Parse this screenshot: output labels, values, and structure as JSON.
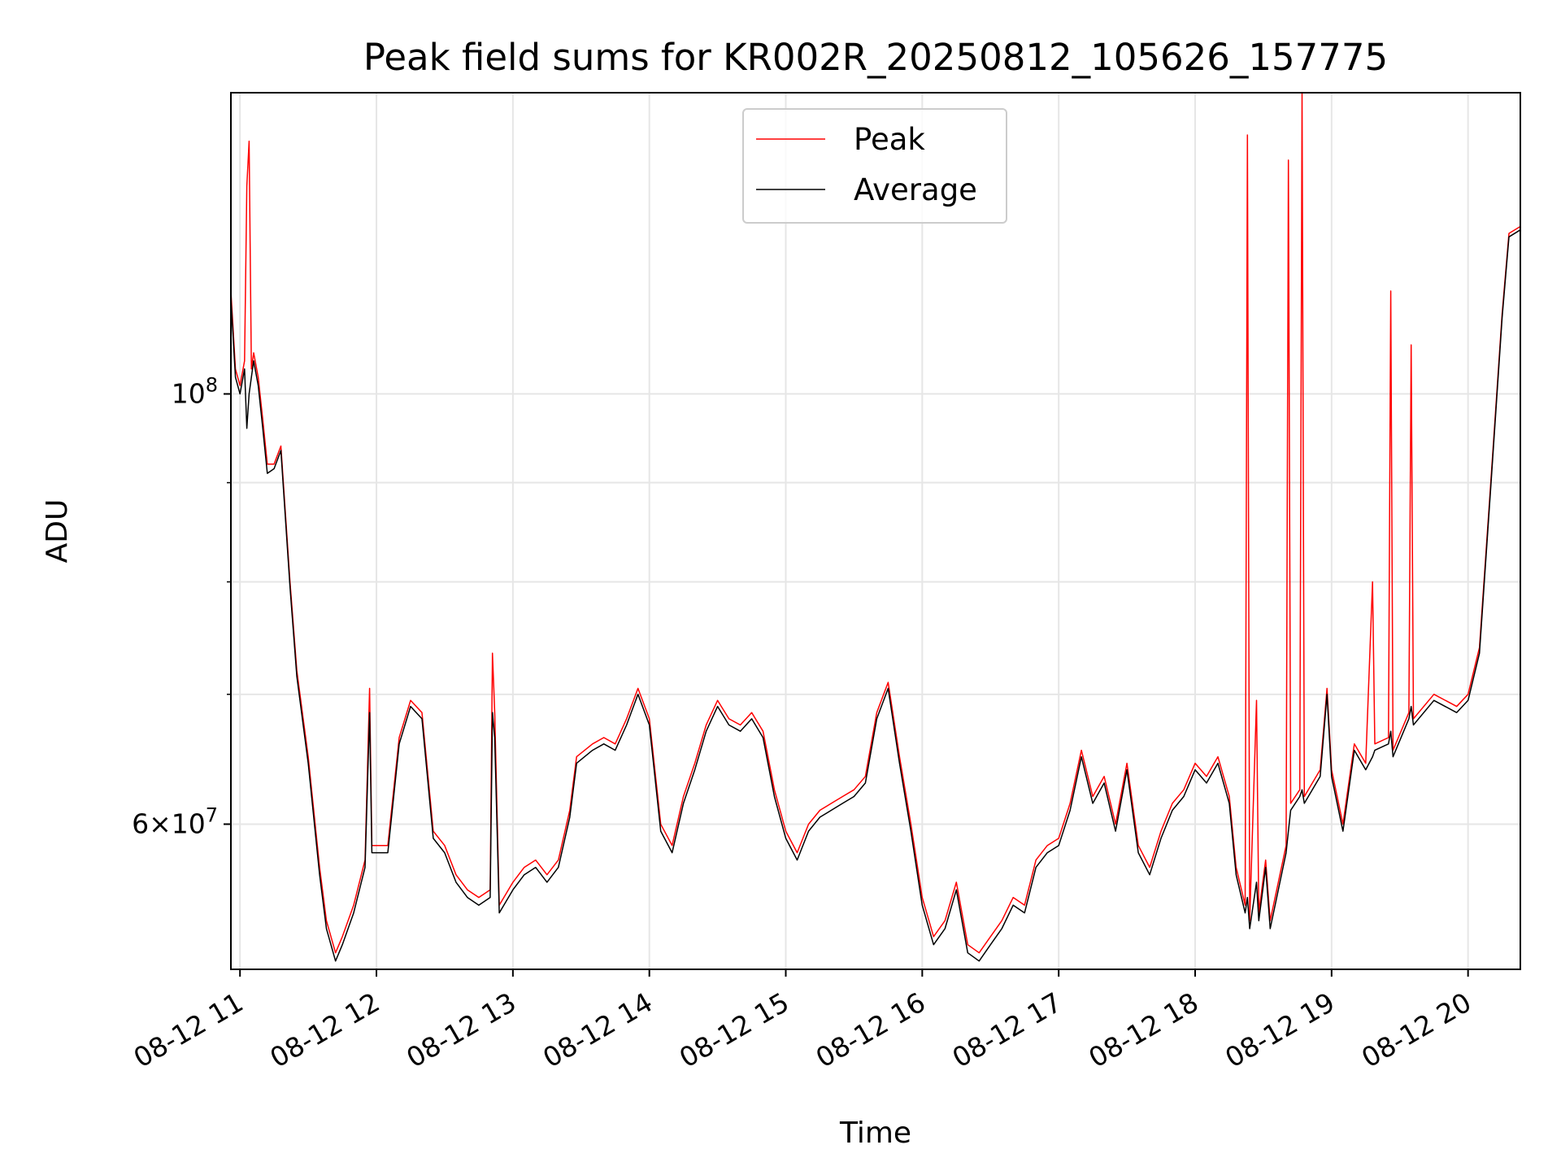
{
  "chart_data": {
    "type": "line",
    "title": "Peak field sums for KR002R_20250812_105626_157775",
    "xlabel": "Time",
    "ylabel": "ADU",
    "x_scale": "time",
    "y_scale": "log",
    "xlim": [
      "2025-08-12 10:56",
      "2025-08-12 20:23"
    ],
    "ylim": [
      50500000,
      143000000
    ],
    "xticks": [
      "08-12 11",
      "08-12 12",
      "08-12 13",
      "08-12 14",
      "08-12 15",
      "08-12 16",
      "08-12 17",
      "08-12 18",
      "08-12 19",
      "08-12 20"
    ],
    "yticks": [
      {
        "value": 100000000,
        "label": "10^8"
      },
      {
        "value": 60000000,
        "label": "6×10^7"
      }
    ],
    "y_minor_ticks": [
      70000000,
      80000000,
      90000000
    ],
    "grid": true,
    "legend": "upper center",
    "series": [
      {
        "name": "Peak",
        "color": "#ff0000",
        "points": [
          [
            "10:56",
            113000000
          ],
          [
            "10:58",
            103000000
          ],
          [
            "11:00",
            101000000
          ],
          [
            "11:02",
            104000000
          ],
          [
            "11:03",
            128000000
          ],
          [
            "11:04",
            135000000
          ],
          [
            "11:05",
            103000000
          ],
          [
            "11:06",
            105000000
          ],
          [
            "11:08",
            102000000
          ],
          [
            "11:10",
            97000000
          ],
          [
            "11:12",
            92000000
          ],
          [
            "11:15",
            92000000
          ],
          [
            "11:18",
            94000000
          ],
          [
            "11:22",
            80000000
          ],
          [
            "11:25",
            72000000
          ],
          [
            "11:30",
            65000000
          ],
          [
            "11:35",
            57000000
          ],
          [
            "11:38",
            53500000
          ],
          [
            "11:42",
            51500000
          ],
          [
            "11:45",
            52500000
          ],
          [
            "11:50",
            54500000
          ],
          [
            "11:55",
            57500000
          ],
          [
            "11:57",
            70500000
          ],
          [
            "11:58",
            58500000
          ],
          [
            "12:05",
            58500000
          ],
          [
            "12:10",
            66500000
          ],
          [
            "12:15",
            69500000
          ],
          [
            "12:20",
            68500000
          ],
          [
            "12:25",
            59500000
          ],
          [
            "12:30",
            58500000
          ],
          [
            "12:35",
            56500000
          ],
          [
            "12:40",
            55500000
          ],
          [
            "12:45",
            55000000
          ],
          [
            "12:50",
            55500000
          ],
          [
            "12:51",
            73500000
          ],
          [
            "12:52",
            68500000
          ],
          [
            "12:54",
            54500000
          ],
          [
            "13:00",
            56000000
          ],
          [
            "13:05",
            57000000
          ],
          [
            "13:10",
            57500000
          ],
          [
            "13:15",
            56500000
          ],
          [
            "13:20",
            57500000
          ],
          [
            "13:25",
            61000000
          ],
          [
            "13:28",
            65000000
          ],
          [
            "13:35",
            66000000
          ],
          [
            "13:40",
            66500000
          ],
          [
            "13:45",
            66000000
          ],
          [
            "13:50",
            68000000
          ],
          [
            "13:55",
            70500000
          ],
          [
            "14:00",
            68000000
          ],
          [
            "14:05",
            60000000
          ],
          [
            "14:10",
            58500000
          ],
          [
            "14:15",
            62000000
          ],
          [
            "14:20",
            64500000
          ],
          [
            "14:25",
            67500000
          ],
          [
            "14:30",
            69500000
          ],
          [
            "14:35",
            68000000
          ],
          [
            "14:40",
            67500000
          ],
          [
            "14:45",
            68500000
          ],
          [
            "14:50",
            67000000
          ],
          [
            "14:55",
            62500000
          ],
          [
            "15:00",
            59500000
          ],
          [
            "15:05",
            58000000
          ],
          [
            "15:10",
            60000000
          ],
          [
            "15:15",
            61000000
          ],
          [
            "15:20",
            61500000
          ],
          [
            "15:25",
            62000000
          ],
          [
            "15:30",
            62500000
          ],
          [
            "15:35",
            63500000
          ],
          [
            "15:40",
            68500000
          ],
          [
            "15:45",
            71000000
          ],
          [
            "15:50",
            65000000
          ],
          [
            "15:55",
            60000000
          ],
          [
            "16:00",
            55000000
          ],
          [
            "16:05",
            52500000
          ],
          [
            "16:10",
            53500000
          ],
          [
            "16:15",
            56000000
          ],
          [
            "16:20",
            52000000
          ],
          [
            "16:25",
            51500000
          ],
          [
            "16:30",
            52500000
          ],
          [
            "16:35",
            53500000
          ],
          [
            "16:40",
            55000000
          ],
          [
            "16:45",
            54500000
          ],
          [
            "16:50",
            57500000
          ],
          [
            "16:55",
            58500000
          ],
          [
            "17:00",
            59000000
          ],
          [
            "17:05",
            61500000
          ],
          [
            "17:10",
            65500000
          ],
          [
            "17:15",
            62000000
          ],
          [
            "17:20",
            63500000
          ],
          [
            "17:25",
            60000000
          ],
          [
            "17:30",
            64500000
          ],
          [
            "17:35",
            58500000
          ],
          [
            "17:40",
            57000000
          ],
          [
            "17:45",
            59500000
          ],
          [
            "17:50",
            61500000
          ],
          [
            "17:55",
            62500000
          ],
          [
            "18:00",
            64500000
          ],
          [
            "18:05",
            63500000
          ],
          [
            "18:10",
            65000000
          ],
          [
            "18:15",
            62000000
          ],
          [
            "18:18",
            57000000
          ],
          [
            "18:22",
            54500000
          ],
          [
            "18:23",
            136000000
          ],
          [
            "18:24",
            53500000
          ],
          [
            "18:27",
            69500000
          ],
          [
            "18:28",
            54000000
          ],
          [
            "18:31",
            57500000
          ],
          [
            "18:33",
            53500000
          ],
          [
            "18:40",
            58500000
          ],
          [
            "18:41",
            132000000
          ],
          [
            "18:42",
            61500000
          ],
          [
            "18:46",
            62500000
          ],
          [
            "18:47",
            143000000
          ],
          [
            "18:48",
            62000000
          ],
          [
            "18:55",
            64000000
          ],
          [
            "18:58",
            70500000
          ],
          [
            "19:00",
            64000000
          ],
          [
            "19:05",
            60000000
          ],
          [
            "19:10",
            66000000
          ],
          [
            "19:15",
            64500000
          ],
          [
            "19:18",
            80000000
          ],
          [
            "19:19",
            66000000
          ],
          [
            "19:25",
            66500000
          ],
          [
            "19:26",
            113000000
          ],
          [
            "19:27",
            65500000
          ],
          [
            "19:34",
            68500000
          ],
          [
            "19:35",
            106000000
          ],
          [
            "19:36",
            68000000
          ],
          [
            "19:45",
            70000000
          ],
          [
            "19:55",
            69000000
          ],
          [
            "20:00",
            70000000
          ],
          [
            "20:05",
            74000000
          ],
          [
            "20:10",
            90000000
          ],
          [
            "20:15",
            110000000
          ],
          [
            "20:18",
            121000000
          ],
          [
            "20:23",
            122000000
          ]
        ]
      },
      {
        "name": "Average",
        "color": "#000000",
        "points": [
          [
            "10:56",
            112000000
          ],
          [
            "10:58",
            102000000
          ],
          [
            "11:00",
            100000000
          ],
          [
            "11:02",
            103000000
          ],
          [
            "11:03",
            96000000
          ],
          [
            "11:04",
            100000000
          ],
          [
            "11:05",
            102000000
          ],
          [
            "11:06",
            104000000
          ],
          [
            "11:08",
            101000000
          ],
          [
            "11:10",
            96000000
          ],
          [
            "11:12",
            91000000
          ],
          [
            "11:15",
            91500000
          ],
          [
            "11:18",
            93500000
          ],
          [
            "11:22",
            79500000
          ],
          [
            "11:25",
            71500000
          ],
          [
            "11:30",
            64500000
          ],
          [
            "11:35",
            56500000
          ],
          [
            "11:38",
            53000000
          ],
          [
            "11:42",
            51000000
          ],
          [
            "11:45",
            52000000
          ],
          [
            "11:50",
            54000000
          ],
          [
            "11:55",
            57000000
          ],
          [
            "11:57",
            68500000
          ],
          [
            "11:58",
            58000000
          ],
          [
            "12:05",
            58000000
          ],
          [
            "12:10",
            66000000
          ],
          [
            "12:15",
            69000000
          ],
          [
            "12:20",
            68000000
          ],
          [
            "12:25",
            59000000
          ],
          [
            "12:30",
            58000000
          ],
          [
            "12:35",
            56000000
          ],
          [
            "12:40",
            55000000
          ],
          [
            "12:45",
            54500000
          ],
          [
            "12:50",
            55000000
          ],
          [
            "12:51",
            68500000
          ],
          [
            "12:52",
            66500000
          ],
          [
            "12:54",
            54000000
          ],
          [
            "13:00",
            55500000
          ],
          [
            "13:05",
            56500000
          ],
          [
            "13:10",
            57000000
          ],
          [
            "13:15",
            56000000
          ],
          [
            "13:20",
            57000000
          ],
          [
            "13:25",
            60500000
          ],
          [
            "13:28",
            64500000
          ],
          [
            "13:35",
            65500000
          ],
          [
            "13:40",
            66000000
          ],
          [
            "13:45",
            65500000
          ],
          [
            "13:50",
            67500000
          ],
          [
            "13:55",
            70000000
          ],
          [
            "14:00",
            67500000
          ],
          [
            "14:05",
            59500000
          ],
          [
            "14:10",
            58000000
          ],
          [
            "14:15",
            61500000
          ],
          [
            "14:20",
            64000000
          ],
          [
            "14:25",
            67000000
          ],
          [
            "14:30",
            69000000
          ],
          [
            "14:35",
            67500000
          ],
          [
            "14:40",
            67000000
          ],
          [
            "14:45",
            68000000
          ],
          [
            "14:50",
            66500000
          ],
          [
            "14:55",
            62000000
          ],
          [
            "15:00",
            59000000
          ],
          [
            "15:05",
            57500000
          ],
          [
            "15:10",
            59500000
          ],
          [
            "15:15",
            60500000
          ],
          [
            "15:20",
            61000000
          ],
          [
            "15:25",
            61500000
          ],
          [
            "15:30",
            62000000
          ],
          [
            "15:35",
            63000000
          ],
          [
            "15:40",
            68000000
          ],
          [
            "15:45",
            70500000
          ],
          [
            "15:50",
            64500000
          ],
          [
            "15:55",
            59500000
          ],
          [
            "16:00",
            54500000
          ],
          [
            "16:05",
            52000000
          ],
          [
            "16:10",
            53000000
          ],
          [
            "16:15",
            55500000
          ],
          [
            "16:20",
            51500000
          ],
          [
            "16:25",
            51000000
          ],
          [
            "16:30",
            52000000
          ],
          [
            "16:35",
            53000000
          ],
          [
            "16:40",
            54500000
          ],
          [
            "16:45",
            54000000
          ],
          [
            "16:50",
            57000000
          ],
          [
            "16:55",
            58000000
          ],
          [
            "17:00",
            58500000
          ],
          [
            "17:05",
            61000000
          ],
          [
            "17:10",
            65000000
          ],
          [
            "17:15",
            61500000
          ],
          [
            "17:20",
            63000000
          ],
          [
            "17:25",
            59500000
          ],
          [
            "17:30",
            64000000
          ],
          [
            "17:35",
            58000000
          ],
          [
            "17:40",
            56500000
          ],
          [
            "17:45",
            59000000
          ],
          [
            "17:50",
            61000000
          ],
          [
            "17:55",
            62000000
          ],
          [
            "18:00",
            64000000
          ],
          [
            "18:05",
            63000000
          ],
          [
            "18:10",
            64500000
          ],
          [
            "18:15",
            61500000
          ],
          [
            "18:18",
            56500000
          ],
          [
            "18:22",
            54000000
          ],
          [
            "18:23",
            55000000
          ],
          [
            "18:24",
            53000000
          ],
          [
            "18:27",
            56000000
          ],
          [
            "18:28",
            53500000
          ],
          [
            "18:31",
            57000000
          ],
          [
            "18:33",
            53000000
          ],
          [
            "18:40",
            58000000
          ],
          [
            "18:41",
            59500000
          ],
          [
            "18:42",
            61000000
          ],
          [
            "18:46",
            62000000
          ],
          [
            "18:47",
            62500000
          ],
          [
            "18:48",
            61500000
          ],
          [
            "18:55",
            63500000
          ],
          [
            "18:58",
            70000000
          ],
          [
            "19:00",
            63500000
          ],
          [
            "19:05",
            59500000
          ],
          [
            "19:10",
            65500000
          ],
          [
            "19:15",
            64000000
          ],
          [
            "19:18",
            65000000
          ],
          [
            "19:19",
            65500000
          ],
          [
            "19:25",
            66000000
          ],
          [
            "19:26",
            67000000
          ],
          [
            "19:27",
            65000000
          ],
          [
            "19:34",
            68000000
          ],
          [
            "19:35",
            69000000
          ],
          [
            "19:36",
            67500000
          ],
          [
            "19:45",
            69500000
          ],
          [
            "19:55",
            68500000
          ],
          [
            "20:00",
            69500000
          ],
          [
            "20:05",
            73500000
          ],
          [
            "20:10",
            89500000
          ],
          [
            "20:15",
            109500000
          ],
          [
            "20:18",
            120500000
          ],
          [
            "20:23",
            121500000
          ]
        ]
      }
    ]
  }
}
